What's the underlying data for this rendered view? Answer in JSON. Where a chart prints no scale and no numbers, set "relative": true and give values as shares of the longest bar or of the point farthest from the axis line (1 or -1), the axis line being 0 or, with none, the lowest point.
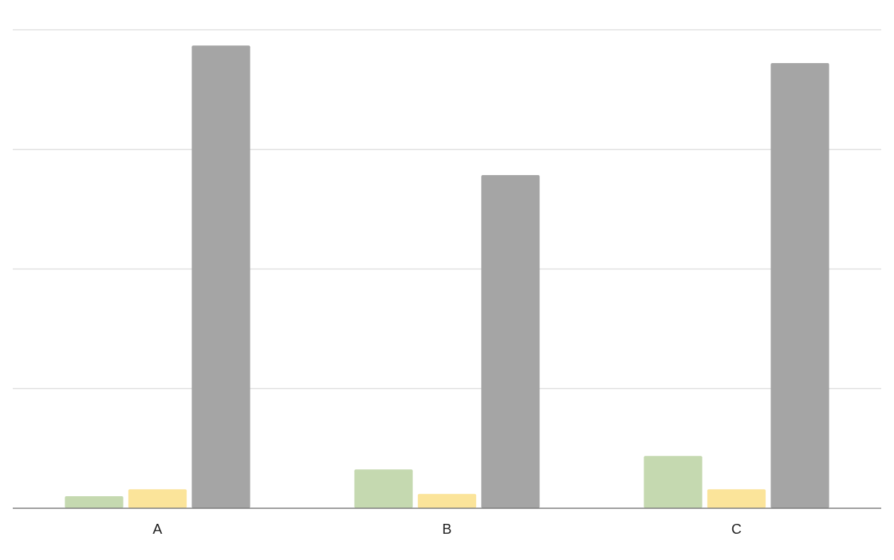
{
  "chart_data": {
    "type": "bar",
    "relative": true,
    "grid": true,
    "categories": [
      "A",
      "B",
      "C"
    ],
    "series": [
      {
        "color": "#c5d9b0",
        "values": [
          0.026,
          0.084,
          0.113
        ]
      },
      {
        "color": "#fbe49a",
        "values": [
          0.041,
          0.031,
          0.041
        ]
      },
      {
        "color": "#a5a5a5",
        "values": [
          1,
          0.72,
          0.962
        ]
      }
    ]
  }
}
